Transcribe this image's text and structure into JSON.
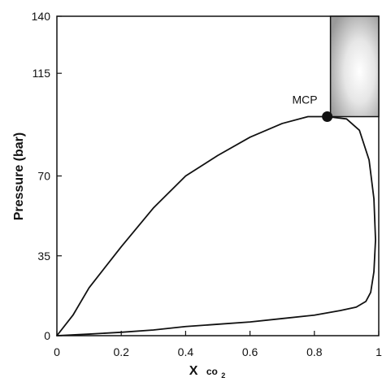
{
  "chart_data": {
    "type": "line",
    "title": "",
    "xlabel": "X",
    "xlabel_subscript": "co",
    "xlabel_subscript_digit": "2",
    "ylabel": "Pressure (bar)",
    "xlim": [
      0,
      1
    ],
    "ylim": [
      0,
      140
    ],
    "x_ticks": [
      0,
      0.2,
      0.4,
      0.6,
      0.8,
      1
    ],
    "x_tick_labels": [
      "0",
      "0.2",
      "0.4",
      "0.6",
      "0.8",
      "1"
    ],
    "y_ticks": [
      0,
      35,
      70,
      115,
      140
    ],
    "y_tick_labels": [
      "0",
      "35",
      "70",
      "115",
      "140"
    ],
    "grid": false,
    "series": [
      {
        "points": [
          [
            0.0,
            0
          ],
          [
            0.05,
            9
          ],
          [
            0.1,
            21
          ],
          [
            0.2,
            39
          ],
          [
            0.3,
            56
          ],
          [
            0.4,
            70
          ],
          [
            0.5,
            79
          ],
          [
            0.6,
            87
          ],
          [
            0.7,
            93
          ],
          [
            0.78,
            96
          ],
          [
            0.84,
            96
          ],
          [
            0.9,
            95
          ],
          [
            0.94,
            90
          ],
          [
            0.97,
            77
          ],
          [
            0.985,
            60
          ],
          [
            0.99,
            42
          ],
          [
            0.985,
            28
          ],
          [
            0.975,
            19
          ],
          [
            0.96,
            15
          ],
          [
            0.93,
            12.5
          ],
          [
            0.88,
            11
          ],
          [
            0.8,
            9
          ],
          [
            0.7,
            7.5
          ],
          [
            0.6,
            6
          ],
          [
            0.5,
            5
          ],
          [
            0.4,
            4
          ],
          [
            0.3,
            2.5
          ],
          [
            0.2,
            1.5
          ],
          [
            0.1,
            0.7
          ],
          [
            0.0,
            0
          ]
        ]
      }
    ],
    "critical_point": {
      "label": "MCP",
      "x": 0.84,
      "y": 96
    },
    "shaded_region": {
      "x_range": [
        0.85,
        1.0
      ],
      "y_range": [
        96,
        140
      ]
    }
  }
}
